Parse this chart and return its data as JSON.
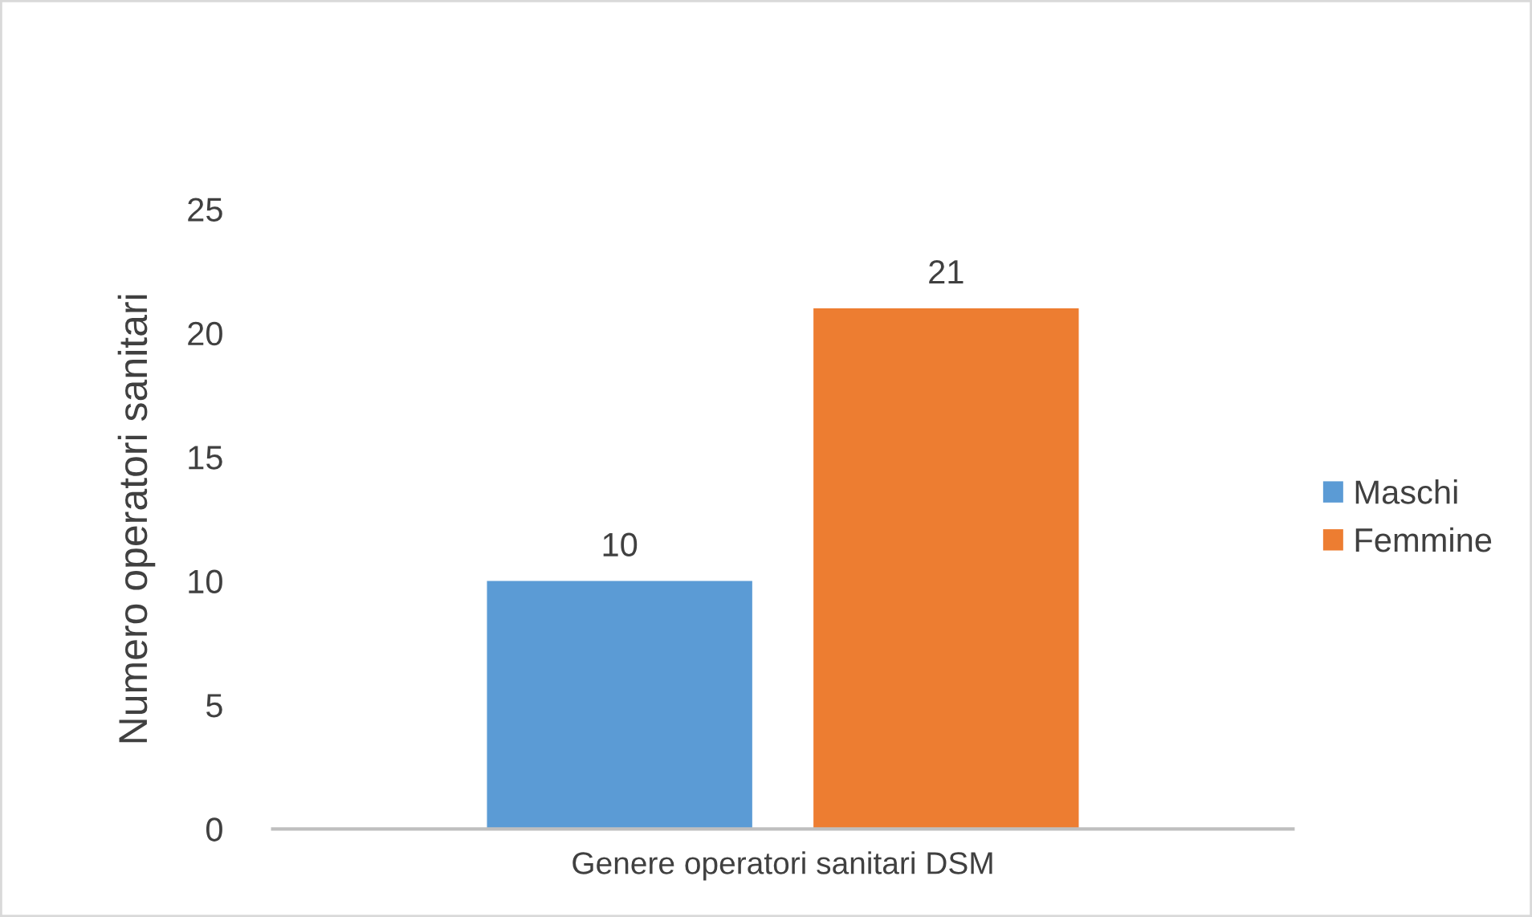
{
  "chart_data": {
    "type": "bar",
    "ylabel": "Numero operatori sanitari",
    "categories": [
      "Genere operatori sanitari DSM"
    ],
    "series": [
      {
        "name": "Maschi",
        "color": "#5b9bd5",
        "values": [
          10
        ]
      },
      {
        "name": "Femmine",
        "color": "#ed7d31",
        "values": [
          21
        ]
      }
    ],
    "ylim": [
      0,
      25
    ],
    "yticks": [
      0,
      5,
      10,
      15,
      20,
      25
    ],
    "grid": false,
    "legend": "right",
    "data_labels": true
  }
}
